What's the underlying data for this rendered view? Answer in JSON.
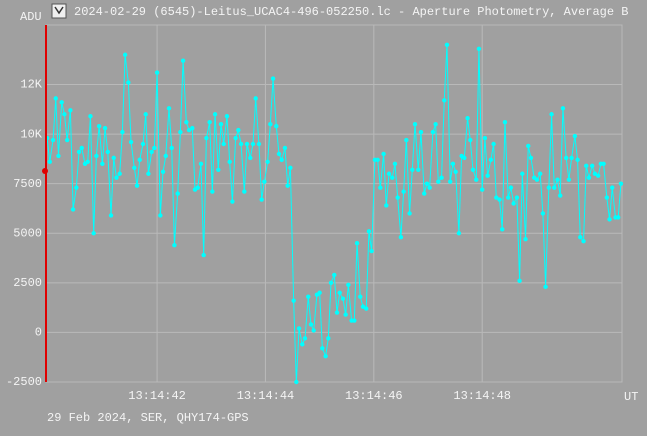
{
  "chart_data": {
    "type": "line",
    "title": "2024-02-29 (6545)-Leitus_UCAC4-496-052250.lc - Aperture Photometry, Average B",
    "y_label": "ADU",
    "x_label": "UT",
    "footer": "29 Feb 2024, SER, QHY174-GPS",
    "color": "#00ffff",
    "grid": true,
    "xlim": [
      39.95,
      50.58
    ],
    "xticks": [
      {
        "value": 42,
        "label": "13:14:42"
      },
      {
        "value": 44,
        "label": "13:14:44"
      },
      {
        "value": 46,
        "label": "13:14:46"
      },
      {
        "value": 48,
        "label": "13:14:48"
      }
    ],
    "ylim": [
      -2500,
      15500
    ],
    "yticks": [
      -2500,
      0,
      2500,
      5000,
      7500,
      {
        "value": 10000,
        "label": "10K"
      },
      {
        "value": 12500,
        "label": "12K"
      }
    ],
    "x": [
      39.97,
      40.02,
      40.08,
      40.13,
      40.18,
      40.24,
      40.29,
      40.34,
      40.4,
      40.45,
      40.51,
      40.56,
      40.61,
      40.67,
      40.72,
      40.77,
      40.83,
      40.88,
      40.93,
      40.99,
      41.04,
      41.09,
      41.15,
      41.2,
      41.25,
      41.31,
      41.36,
      41.41,
      41.47,
      41.52,
      41.58,
      41.63,
      41.68,
      41.74,
      41.79,
      41.84,
      41.9,
      41.95,
      42.0,
      42.06,
      42.11,
      42.16,
      42.22,
      42.27,
      42.32,
      42.38,
      42.43,
      42.48,
      42.54,
      42.59,
      42.65,
      42.7,
      42.75,
      42.81,
      42.86,
      42.91,
      42.97,
      43.02,
      43.07,
      43.13,
      43.18,
      43.23,
      43.29,
      43.34,
      43.39,
      43.45,
      43.5,
      43.55,
      43.61,
      43.66,
      43.72,
      43.77,
      43.82,
      43.88,
      43.93,
      43.98,
      44.04,
      44.09,
      44.14,
      44.2,
      44.25,
      44.3,
      44.36,
      44.41,
      44.46,
      44.52,
      44.57,
      44.62,
      44.68,
      44.73,
      44.79,
      44.84,
      44.89,
      44.95,
      45.0,
      45.05,
      45.11,
      45.16,
      45.21,
      45.27,
      45.32,
      45.37,
      45.43,
      45.48,
      45.53,
      45.59,
      45.64,
      45.69,
      45.75,
      45.8,
      45.86,
      45.91,
      45.96,
      46.02,
      46.07,
      46.12,
      46.18,
      46.23,
      46.28,
      46.34,
      46.39,
      46.44,
      46.5,
      46.55,
      46.6,
      46.66,
      46.71,
      46.76,
      46.82,
      46.87,
      46.93,
      46.98,
      47.03,
      47.09,
      47.14,
      47.19,
      47.25,
      47.3,
      47.35,
      47.41,
      47.46,
      47.51,
      47.57,
      47.62,
      47.67,
      47.73,
      47.78,
      47.83,
      47.89,
      47.94,
      48.0,
      48.05,
      48.1,
      48.16,
      48.21,
      48.26,
      48.32,
      48.37,
      48.42,
      48.48,
      48.53,
      48.58,
      48.64,
      48.69,
      48.74,
      48.8,
      48.85,
      48.9,
      48.96,
      49.01,
      49.07,
      49.12,
      49.17,
      49.23,
      49.28,
      49.33,
      49.39,
      49.44,
      49.49,
      49.55,
      49.6,
      49.65,
      49.71,
      49.76,
      49.81,
      49.87,
      49.92,
      49.97,
      50.03,
      50.08,
      50.14,
      50.19,
      50.24,
      50.3,
      50.35,
      50.4,
      50.46,
      50.51,
      50.56
    ],
    "values": [
      9800,
      8600,
      9700,
      11800,
      8900,
      11600,
      11000,
      9700,
      11200,
      6200,
      7300,
      9100,
      9300,
      8500,
      8600,
      10900,
      5000,
      8900,
      10400,
      8500,
      10300,
      9100,
      5900,
      8800,
      7800,
      8000,
      10100,
      14000,
      12600,
      9600,
      8300,
      7400,
      8700,
      9500,
      11000,
      8000,
      9100,
      9300,
      13100,
      5900,
      8100,
      8900,
      11300,
      9300,
      4400,
      7000,
      10100,
      13700,
      10600,
      10200,
      10300,
      7200,
      7300,
      8500,
      3900,
      9800,
      10600,
      7100,
      11000,
      8200,
      10500,
      9500,
      10900,
      8600,
      6600,
      9800,
      10200,
      9500,
      7100,
      9500,
      8800,
      9500,
      11800,
      9500,
      6700,
      7600,
      8600,
      10500,
      12800,
      10400,
      9000,
      8700,
      9300,
      7400,
      8300,
      1600,
      -2500,
      200,
      -600,
      -300,
      1800,
      400,
      100,
      1900,
      2000,
      -800,
      -1200,
      -300,
      2500,
      2900,
      1000,
      2000,
      1700,
      900,
      2400,
      600,
      600,
      4500,
      1800,
      1300,
      1200,
      5100,
      4100,
      8700,
      8700,
      7300,
      9000,
      6400,
      8000,
      7800,
      8500,
      6800,
      4800,
      7100,
      9700,
      6000,
      8200,
      10500,
      8200,
      10100,
      7000,
      7500,
      7300,
      10100,
      10500,
      7600,
      7800,
      11700,
      14500,
      7600,
      8500,
      8100,
      5000,
      8900,
      8800,
      10800,
      9700,
      8200,
      7700,
      14300,
      7200,
      9800,
      7900,
      8700,
      9500,
      6800,
      6700,
      5200,
      10600,
      6800,
      7300,
      6500,
      6800,
      2600,
      8000,
      4700,
      9400,
      8800,
      7800,
      7700,
      8000,
      6000,
      2300,
      7300,
      11000,
      7300,
      7700,
      6900,
      11300,
      8800,
      7700,
      8800,
      9900,
      8700,
      4800,
      4600,
      8400,
      7800,
      8400,
      8000,
      7900,
      8500,
      8500,
      6800,
      5700,
      7300,
      5800,
      5800,
      7500
    ]
  }
}
